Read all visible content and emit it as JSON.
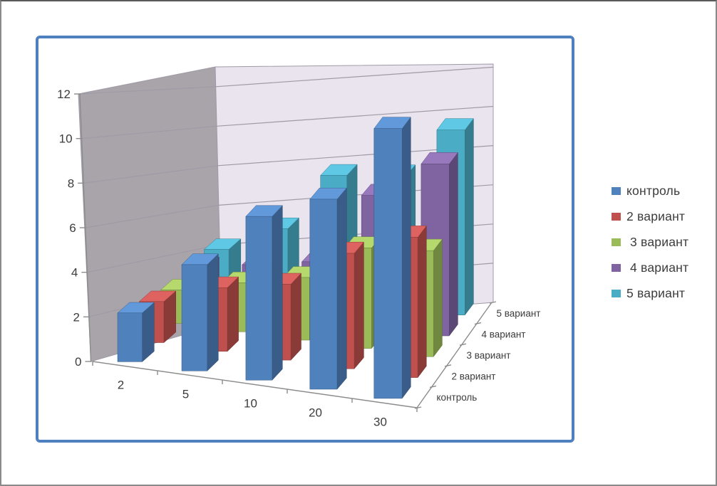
{
  "window": {
    "background": "#ffffff",
    "outer_border_color": "#8a8a8a"
  },
  "chart_frame": {
    "border_color": "#4e7fbe",
    "fill": "#ffffff"
  },
  "chart_data": {
    "type": "bar",
    "subtype": "3d-column",
    "title": "",
    "xlabel": "",
    "ylabel": "",
    "categories": [
      "2",
      "5",
      "10",
      "20",
      "30"
    ],
    "series": [
      {
        "name": "контроль",
        "color": "#4F81BD",
        "values": [
          2.2,
          4.7,
          7.1,
          8.1,
          11.3
        ]
      },
      {
        "name": "2 вариант",
        "color": "#C0504D",
        "values": [
          1.9,
          2.9,
          3.4,
          5.1,
          6.1
        ]
      },
      {
        "name": " 3 вариант",
        "color": "#9BBB59",
        "values": [
          1.6,
          2.3,
          2.9,
          4.6,
          4.8
        ]
      },
      {
        "name": " 4 вариант",
        "color": "#8064A2",
        "values": [
          1.8,
          2.3,
          2.8,
          6.3,
          8.1
        ]
      },
      {
        "name": "5 вариант",
        "color": "#4BACC6",
        "values": [
          1.8,
          3.2,
          6.2,
          6.5,
          9.1
        ]
      }
    ],
    "yaxis": {
      "min": 0,
      "max": 12,
      "step": 2,
      "tick_labels": [
        "0",
        "2",
        "4",
        "6",
        "8",
        "10",
        "12"
      ]
    },
    "series_axis_labels": [
      "контроль",
      "2 вариант",
      "3 вариант",
      "4 вариант",
      "5 вариант"
    ],
    "legend_position": "right",
    "grid": true,
    "walls": {
      "side": "#A8A4AA",
      "back": "#E9E4EE",
      "gridline": "#A09AA6",
      "axis_color": "#8C8C8C"
    },
    "text_color": "#3c3c3c"
  },
  "legend": {
    "items": [
      {
        "label": "контроль"
      },
      {
        "label": "2 вариант"
      },
      {
        "label": " 3 вариант"
      },
      {
        "label": " 4 вариант"
      },
      {
        "label": "5 вариант"
      }
    ]
  }
}
